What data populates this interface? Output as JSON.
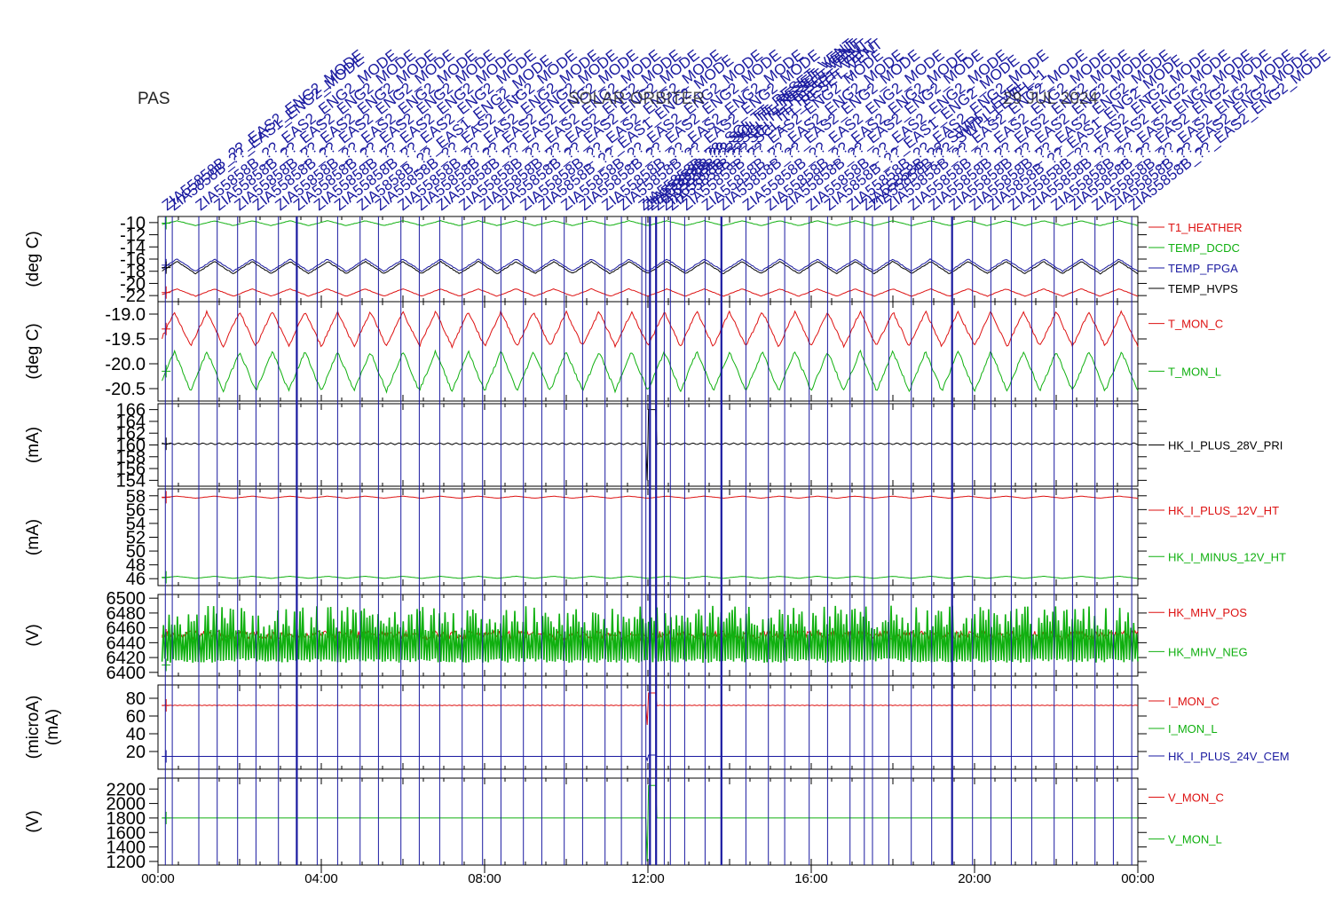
{
  "title": {
    "left": "PAS",
    "center": "SOLAR ORBITER",
    "right": "29 JUL 2024"
  },
  "colors": {
    "black": "#000000",
    "red": "#dd1111",
    "green": "#10b010",
    "blue": "#1a1aa0"
  },
  "x_axis": {
    "ticks": [
      "00:00",
      "04:00",
      "08:00",
      "12:00",
      "16:00",
      "20:00",
      "00:00"
    ]
  },
  "event_labels": {
    "normal": "ZIA55858B_??_EAS2_ENG2_MODE",
    "alt_a": "ZIA5858B_??_EAS1_ENG2_MODE",
    "alt_b": "ZIA55858B_??_SCI_TT_RESET_VENT",
    "alt_c": "ZIA55858B_??_SWPI_LEVEL_1"
  },
  "chart_data": [
    {
      "type": "line",
      "ylabel": "(deg C)",
      "y_ticks": [
        "-10",
        "-12",
        "-14",
        "-16",
        "-18",
        "-20",
        "-22"
      ],
      "ylim": [
        -23,
        -9
      ],
      "x_range_hours": [
        0,
        24
      ],
      "series": [
        {
          "name": "T1_HEATHER",
          "color": "#dd1111",
          "base": -21.5,
          "amp": 0.6,
          "cycles": 26
        },
        {
          "name": "TEMP_DCDC",
          "color": "#10b010",
          "base": -10.1,
          "amp": 0.4,
          "cycles": 26
        },
        {
          "name": "TEMP_FPGA",
          "color": "#1a1aa0",
          "base": -17.0,
          "amp": 1.0,
          "cycles": 26
        },
        {
          "name": "TEMP_HVPS",
          "color": "#000000",
          "base": -17.4,
          "amp": 1.0,
          "cycles": 26
        }
      ]
    },
    {
      "type": "line",
      "ylabel": "(deg C)",
      "y_ticks": [
        "-19.0",
        "-19.5",
        "-20.0",
        "-20.5"
      ],
      "ylim": [
        -20.75,
        -18.75
      ],
      "x_range_hours": [
        0,
        24
      ],
      "series": [
        {
          "name": "T_MON_C",
          "color": "#dd1111",
          "base": -19.3,
          "amp": 0.35,
          "cycles": 30
        },
        {
          "name": "T_MON_L",
          "color": "#10b010",
          "base": -20.15,
          "amp": 0.4,
          "cycles": 30
        }
      ]
    },
    {
      "type": "line",
      "ylabel": "(mA)",
      "y_ticks": [
        "166",
        "164",
        "162",
        "160",
        "158",
        "156",
        "154"
      ],
      "ylim": [
        153,
        167
      ],
      "x_range_hours": [
        0,
        24
      ],
      "series": [
        {
          "name": "HK_I_PLUS_28V_PRI",
          "color": "#000000",
          "base": 160.2,
          "amp": 0.15,
          "cycles": 120,
          "spike": [
            154,
            166
          ]
        }
      ]
    },
    {
      "type": "line",
      "ylabel": "(mA)",
      "y_ticks": [
        "58",
        "56",
        "54",
        "52",
        "50",
        "48",
        "46"
      ],
      "ylim": [
        45,
        59
      ],
      "x_range_hours": [
        0,
        24
      ],
      "series": [
        {
          "name": "HK_I_PLUS_12V_HT",
          "color": "#dd1111",
          "base": 57.8,
          "amp": 0.15,
          "cycles": 26
        },
        {
          "name": "HK_I_MINUS_12V_HT",
          "color": "#10b010",
          "base": 46.2,
          "amp": 0.15,
          "cycles": 26
        }
      ]
    },
    {
      "type": "line",
      "ylabel": "(V)",
      "y_ticks": [
        "6500",
        "6480",
        "6460",
        "6440",
        "6420",
        "6400"
      ],
      "ylim": [
        6395,
        6505
      ],
      "x_range_hours": [
        0,
        24
      ],
      "series": [
        {
          "name": "HK_MHV_POS",
          "color": "#dd1111",
          "base": 6450,
          "amp": 6
        },
        {
          "name": "HK_MHV_NEG",
          "color": "#10b010",
          "base": 6410,
          "amp": 75
        }
      ]
    },
    {
      "type": "line",
      "ylabel": "(microA)",
      "ylabel2": "(mA)",
      "y_ticks": [
        "80",
        "60",
        "40",
        "20"
      ],
      "ylim": [
        0,
        95
      ],
      "x_range_hours": [
        0,
        24
      ],
      "series": [
        {
          "name": "I_MON_C",
          "color": "#dd1111",
          "base": 72,
          "amp": 0.4,
          "cycles": 200,
          "spike": [
            50,
            86
          ]
        },
        {
          "name": "I_MON_L",
          "color": "#10b010",
          "base": null
        },
        {
          "name": "HK_I_PLUS_24V_CEM",
          "color": "#1a1aa0",
          "base": 14.5,
          "amp": 0,
          "spike": [
            10,
            16
          ]
        }
      ]
    },
    {
      "type": "line",
      "ylabel": "(V)",
      "y_ticks": [
        "2200",
        "2000",
        "1800",
        "1600",
        "1400",
        "1200"
      ],
      "ylim": [
        1150,
        2350
      ],
      "x_range_hours": [
        0,
        24
      ],
      "series": [
        {
          "name": "V_MON_C",
          "color": "#dd1111",
          "base": null
        },
        {
          "name": "V_MON_L",
          "color": "#10b010",
          "base": 1800,
          "amp": 0,
          "spike": [
            1200,
            2250
          ]
        }
      ]
    }
  ],
  "event_marks_hours": [
    0.18,
    0.35,
    1.0,
    1.45,
    1.95,
    2.4,
    2.95,
    3.4,
    3.9,
    4.4,
    4.95,
    5.4,
    5.95,
    6.4,
    6.9,
    7.45,
    7.95,
    8.4,
    8.95,
    9.4,
    9.95,
    10.4,
    10.95,
    11.35,
    11.85,
    11.95,
    12.05,
    12.2,
    12.4,
    12.55,
    12.9,
    13.4,
    13.8,
    14.4,
    14.95,
    15.35,
    15.95,
    16.4,
    16.95,
    17.3,
    17.5,
    17.9,
    18.45,
    18.95,
    19.45,
    19.95,
    20.4,
    20.9,
    21.4,
    21.95,
    22.4,
    22.95,
    23.4,
    23.85
  ],
  "bold_marks_hours": [
    3.4,
    12.05,
    12.2,
    13.8,
    19.45
  ]
}
